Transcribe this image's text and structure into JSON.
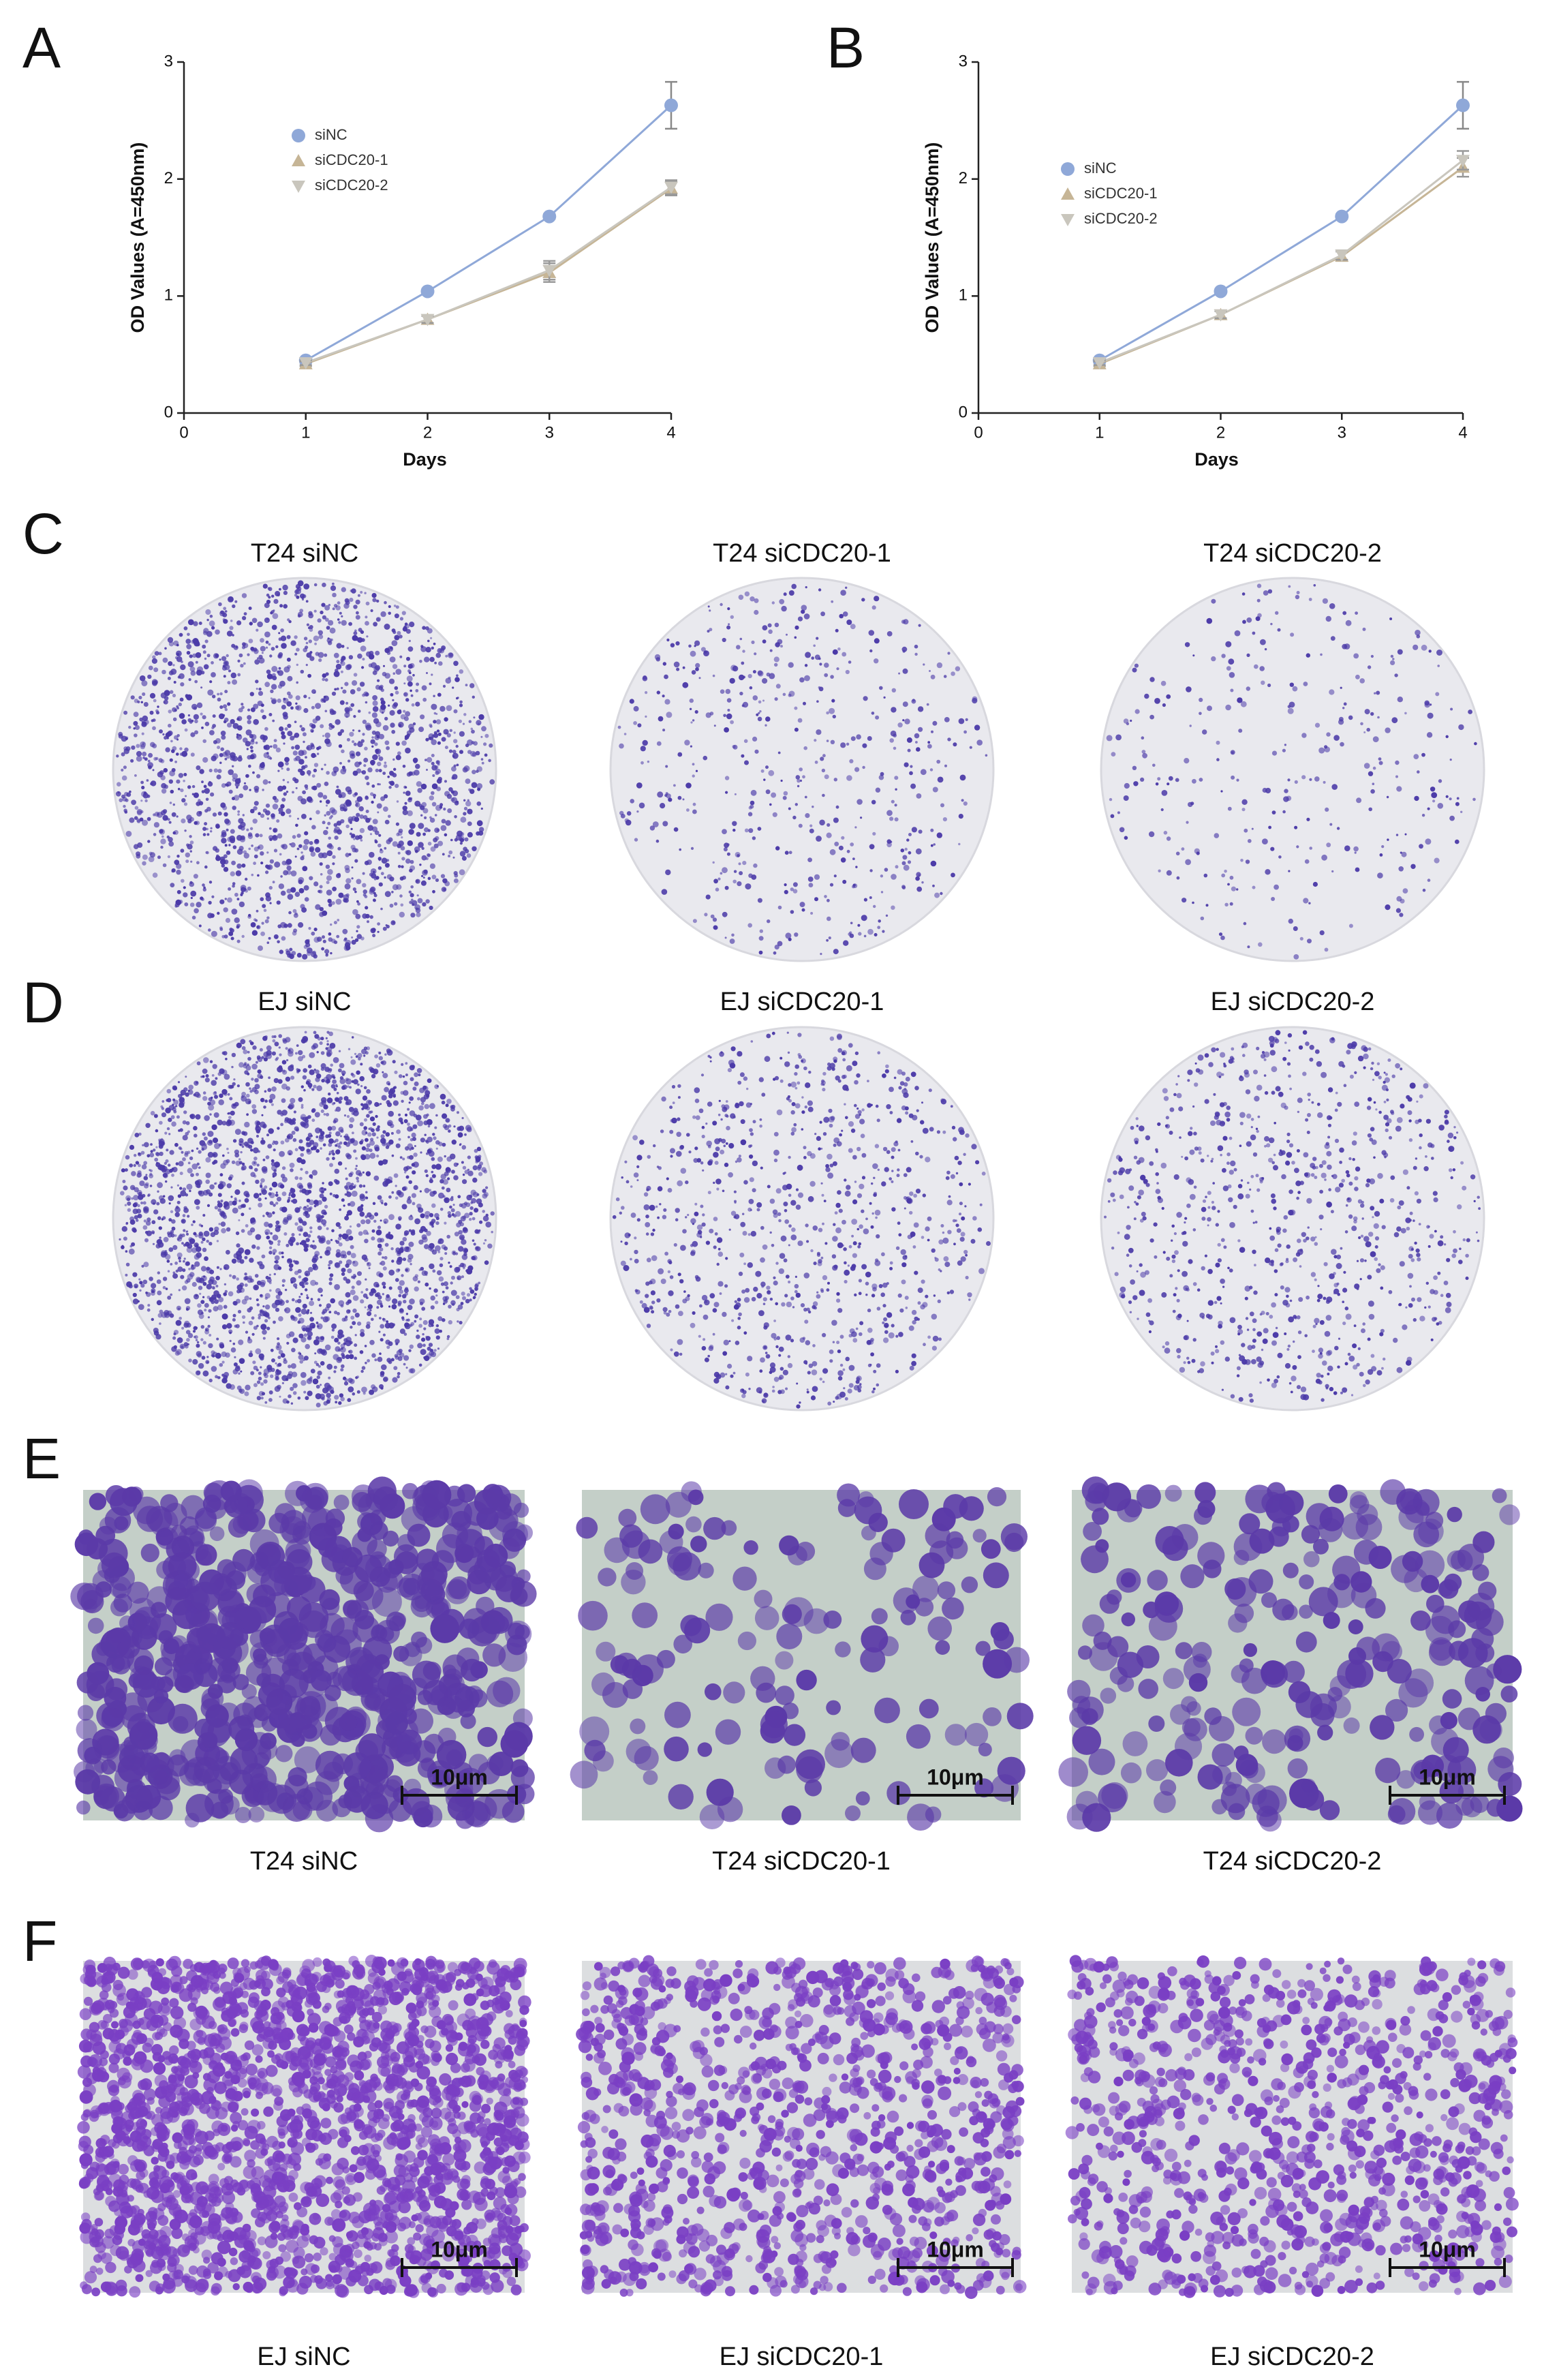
{
  "chart_data": [
    {
      "type": "line",
      "xlabel": "Days",
      "ylabel": "OD Values (A=450nm)",
      "x": [
        1,
        2,
        3,
        4
      ],
      "xlim": [
        0,
        4
      ],
      "xticks": [
        0,
        1,
        2,
        3,
        4
      ],
      "ylim": [
        0,
        3
      ],
      "yticks": [
        0,
        1,
        2,
        3
      ],
      "series": [
        {
          "name": "siNC",
          "color": "#8fa8d8",
          "marker": "circle",
          "values": [
            0.45,
            1.04,
            1.68,
            2.63
          ],
          "errors": [
            0.02,
            0.02,
            0.02,
            0.2
          ]
        },
        {
          "name": "siCDC20-1",
          "color": "#c6b596",
          "marker": "triangle",
          "values": [
            0.42,
            0.8,
            1.2,
            1.92
          ],
          "errors": [
            0.02,
            0.03,
            0.08,
            0.06
          ]
        },
        {
          "name": "siCDC20-2",
          "color": "#c9c6bd",
          "marker": "triangle-down",
          "values": [
            0.43,
            0.8,
            1.22,
            1.93
          ],
          "errors": [
            0.02,
            0.03,
            0.08,
            0.06
          ]
        }
      ]
    },
    {
      "type": "line",
      "xlabel": "Days",
      "ylabel": "OD Values (A=450nm)",
      "x": [
        1,
        2,
        3,
        4
      ],
      "xlim": [
        0,
        4
      ],
      "xticks": [
        0,
        1,
        2,
        3,
        4
      ],
      "ylim": [
        0,
        3
      ],
      "yticks": [
        0,
        1,
        2,
        3
      ],
      "series": [
        {
          "name": "siNC",
          "color": "#8fa8d8",
          "marker": "circle",
          "values": [
            0.45,
            1.04,
            1.68,
            2.63
          ],
          "errors": [
            0.02,
            0.02,
            0.02,
            0.2
          ]
        },
        {
          "name": "siCDC20-1",
          "color": "#c6b596",
          "marker": "triangle",
          "values": [
            0.42,
            0.84,
            1.34,
            2.1
          ],
          "errors": [
            0.02,
            0.03,
            0.04,
            0.08
          ]
        },
        {
          "name": "siCDC20-2",
          "color": "#c9c6bd",
          "marker": "triangle-down",
          "values": [
            0.43,
            0.84,
            1.35,
            2.16
          ],
          "errors": [
            0.02,
            0.03,
            0.04,
            0.08
          ]
        }
      ]
    }
  ],
  "panel_labels": [
    "A",
    "B",
    "C",
    "D",
    "E",
    "F"
  ],
  "captions": {
    "C": [
      "T24 siNC",
      "T24 siCDC20-1",
      "T24 siCDC20-2"
    ],
    "D": [
      "EJ siNC",
      "EJ siCDC20-1",
      "EJ siCDC20-2"
    ],
    "E": [
      "T24 siNC",
      "T24 siCDC20-1",
      "T24 siCDC20-2"
    ],
    "F": [
      "EJ siNC",
      "EJ siCDC20-1",
      "EJ siCDC20-2"
    ]
  },
  "scale_bar_label": "10μm"
}
